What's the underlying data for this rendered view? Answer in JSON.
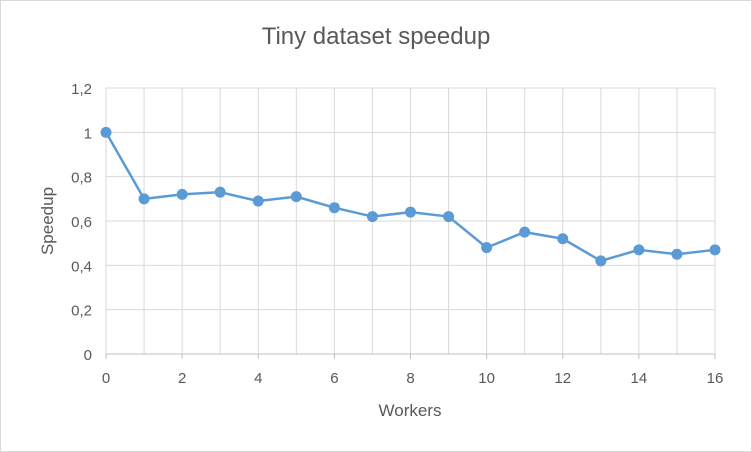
{
  "chart_data": {
    "type": "line",
    "title": "Tiny dataset speedup",
    "xlabel": "Workers",
    "ylabel": "Speedup",
    "xlim": [
      0,
      16
    ],
    "ylim": [
      0,
      1.2
    ],
    "x_ticks": [
      "0",
      "2",
      "4",
      "6",
      "8",
      "10",
      "12",
      "14",
      "16"
    ],
    "y_ticks": [
      "0",
      "0,2",
      "0,4",
      "0,6",
      "0,8",
      "1",
      "1,2"
    ],
    "grid": true,
    "series": [
      {
        "x": [
          0,
          1,
          2,
          3,
          4,
          5,
          6,
          7,
          8,
          9,
          10,
          11,
          12,
          13,
          14,
          15,
          16
        ],
        "values": [
          1.0,
          0.7,
          0.72,
          0.73,
          0.69,
          0.71,
          0.66,
          0.62,
          0.64,
          0.62,
          0.48,
          0.55,
          0.52,
          0.42,
          0.47,
          0.45,
          0.47
        ],
        "color": "#5b9bd5"
      }
    ]
  }
}
